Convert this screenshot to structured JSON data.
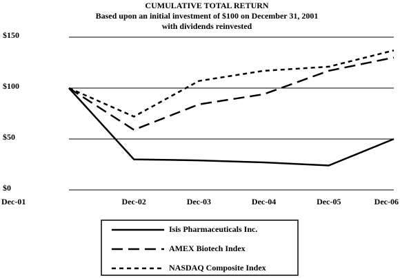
{
  "chart_data": {
    "type": "line",
    "title": "CUMULATIVE TOTAL RETURN",
    "subtitle": [
      "Based upon an initial investment of $100 on December 31, 2001",
      "with dividends reinvested"
    ],
    "categories": [
      "Dec-01",
      "Dec-02",
      "Dec-03",
      "Dec-04",
      "Dec-05",
      "Dec-06"
    ],
    "series": [
      {
        "name": "Isis Pharmaceuticals Inc.",
        "color": "#000000",
        "dash": "solid",
        "values": [
          100,
          30,
          29,
          27,
          24,
          50
        ]
      },
      {
        "name": "AMEX Biotech Index",
        "color": "#000000",
        "dash": "long",
        "values": [
          100,
          59,
          84,
          94,
          117,
          130
        ]
      },
      {
        "name": "NASDAQ Composite Index",
        "color": "#000000",
        "dash": "short",
        "values": [
          100,
          72,
          107,
          117,
          121,
          137
        ]
      }
    ],
    "ylim": [
      0,
      150
    ],
    "yticks": [
      {
        "value": 0,
        "label": "$0"
      },
      {
        "value": 50,
        "label": "$50"
      },
      {
        "value": 100,
        "label": "$100"
      },
      {
        "value": 150,
        "label": "$150"
      }
    ],
    "grid": true
  }
}
